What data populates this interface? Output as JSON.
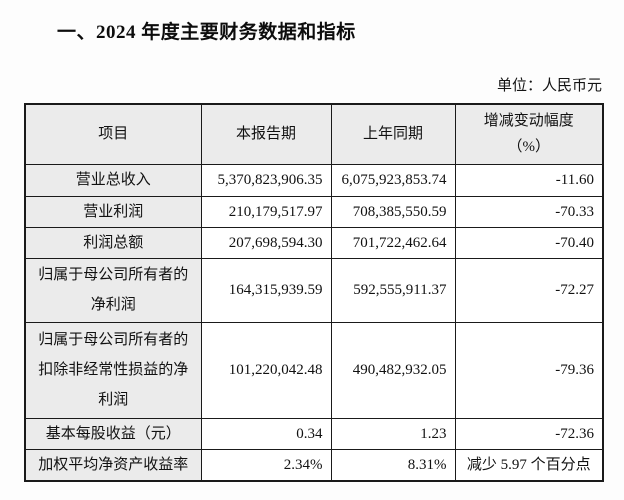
{
  "page": {
    "section_title": "一、2024 年度主要财务数据和指标",
    "unit_label": "单位：人民币元"
  },
  "colors": {
    "shaded_cell_bg": "#ebebeb",
    "border": "#1a1a1a",
    "text": "#111111",
    "page_bg": "#fdfdfd"
  },
  "table": {
    "headers": {
      "item": "项目",
      "current_period": "本报告期",
      "prior_period": "上年同期",
      "change_line1": "增减变动幅度",
      "change_line2": "（%）"
    },
    "rows": [
      {
        "item": "营业总收入",
        "current": "5,370,823,906.35",
        "prior": "6,075,923,853.74",
        "change": "-11.60"
      },
      {
        "item": "营业利润",
        "current": "210,179,517.97",
        "prior": "708,385,550.59",
        "change": "-70.33"
      },
      {
        "item": "利润总额",
        "current": "207,698,594.30",
        "prior": "701,722,462.64",
        "change": "-70.40"
      },
      {
        "item": "归属于母公司所有者的净利润",
        "current": "164,315,939.59",
        "prior": "592,555,911.37",
        "change": "-72.27"
      },
      {
        "item": "归属于母公司所有者的扣除非经常性损益的净利润",
        "current": "101,220,042.48",
        "prior": "490,482,932.05",
        "change": "-79.36"
      },
      {
        "item": "基本每股收益（元）",
        "current": "0.34",
        "prior": "1.23",
        "change": "-72.36"
      },
      {
        "item": "加权平均净资产收益率",
        "current": "2.34%",
        "prior": "8.31%",
        "change": "减少 5.97 个百分点"
      }
    ]
  }
}
